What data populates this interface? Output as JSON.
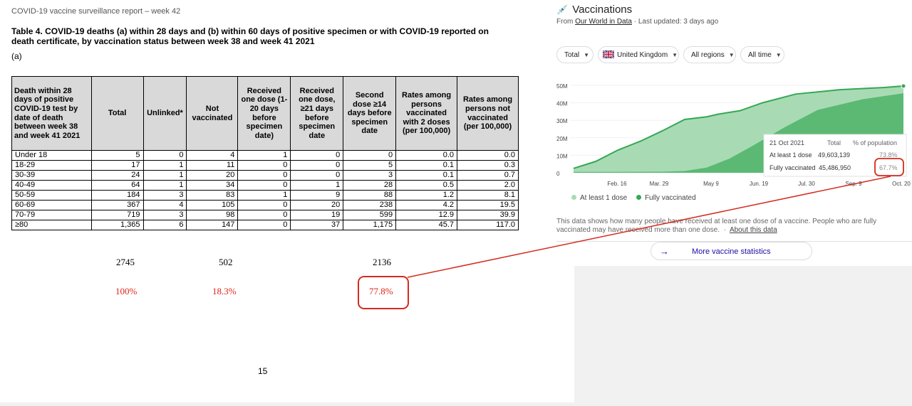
{
  "doc": {
    "header": "COVID-19 vaccine surveillance report – week 42",
    "table_title": "Table 4. COVID-19 deaths (a) within 28 days and (b) within 60 days of positive specimen or with COVID-19 reported on death certificate, by vaccination status between week 38 and week 41 2021",
    "subtable_label": "(a)",
    "columns": [
      "Death within 28 days of positive COVID-19 test by date of death between week 38 and week 41 2021",
      "Total",
      "Unlinked*",
      "Not vaccinated",
      "Received one dose (1-20 days before specimen date)",
      "Received one dose, ≥21 days before specimen date",
      "Second dose ≥14 days before specimen date",
      "Rates among persons vaccinated with 2 doses (per 100,000)",
      "Rates among persons not vaccinated (per 100,000)"
    ],
    "rows": [
      [
        "Under 18",
        "5",
        "0",
        "4",
        "1",
        "0",
        "0",
        "0.0",
        "0.0"
      ],
      [
        "18-29",
        "17",
        "1",
        "11",
        "0",
        "0",
        "5",
        "0.1",
        "0.3"
      ],
      [
        "30-39",
        "24",
        "1",
        "20",
        "0",
        "0",
        "3",
        "0.1",
        "0.7"
      ],
      [
        "40-49",
        "64",
        "1",
        "34",
        "0",
        "1",
        "28",
        "0.5",
        "2.0"
      ],
      [
        "50-59",
        "184",
        "3",
        "83",
        "1",
        "9",
        "88",
        "1.2",
        "8.1"
      ],
      [
        "60-69",
        "367",
        "4",
        "105",
        "0",
        "20",
        "238",
        "4.2",
        "19.5"
      ],
      [
        "70-79",
        "719",
        "3",
        "98",
        "0",
        "19",
        "599",
        "12.9",
        "39.9"
      ],
      [
        "≥80",
        "1,365",
        "6",
        "147",
        "0",
        "37",
        "1,175",
        "45.7",
        "117.0"
      ]
    ],
    "annotations": {
      "sum_total": "2745",
      "sum_not_vaccinated": "502",
      "sum_second_dose": "2136",
      "pct_total": "100%",
      "pct_not_vaccinated": "18.3%",
      "pct_second_dose": "77.8%"
    },
    "page_number": "15"
  },
  "panel": {
    "title": "Vaccinations",
    "from_prefix": "From ",
    "source_link": "Our World in Data",
    "updated": " · Last updated: 3 days ago",
    "filters": {
      "measure": "Total",
      "country": "United Kingdom",
      "region": "All regions",
      "time": "All time"
    },
    "tooltip": {
      "date": "21 Oct 2021",
      "col_total": "Total",
      "col_pct": "% of population",
      "row1_label": "At least 1 dose",
      "row1_total": "49,603,139",
      "row1_pct": "73.8%",
      "row2_label": "Fully vaccinated",
      "row2_total": "45,486,950",
      "row2_pct": "67.7%"
    },
    "legend": {
      "series1": "At least 1 dose",
      "series2": "Fully vaccinated"
    },
    "footnote": "This data shows how many people have received at least one dose of a vaccine. People who are fully vaccinated may have received more than one dose.",
    "footnote_link": "About this data",
    "more_button": "More vaccine statistics"
  },
  "chart_data": {
    "type": "area",
    "title": "Vaccinations",
    "x_labels": [
      "Feb. 16",
      "Mar. 29",
      "May 9",
      "Jun. 19",
      "Jul. 30",
      "Sep. 9",
      "Oct. 20"
    ],
    "y_ticks": [
      "0",
      "10M",
      "20M",
      "30M",
      "40M",
      "50M"
    ],
    "ylim": [
      0,
      50000000
    ],
    "series": [
      {
        "name": "At least 1 dose",
        "color": "#a8dbb4",
        "x": [
          0,
          20,
          40,
          60,
          80,
          100,
          120,
          130,
          150,
          170,
          200,
          240,
          280,
          297
        ],
        "values": [
          2.5,
          6.5,
          13,
          18,
          24,
          30.5,
          32,
          33.5,
          35.5,
          40,
          45,
          47.5,
          48.8,
          49.6
        ]
      },
      {
        "name": "Fully vaccinated",
        "color": "#5bb974",
        "x": [
          0,
          40,
          80,
          100,
          120,
          140,
          160,
          190,
          220,
          260,
          297
        ],
        "values": [
          0.5,
          0.5,
          0.6,
          1,
          3,
          8,
          15,
          26,
          36,
          42,
          45.5
        ]
      }
    ]
  }
}
